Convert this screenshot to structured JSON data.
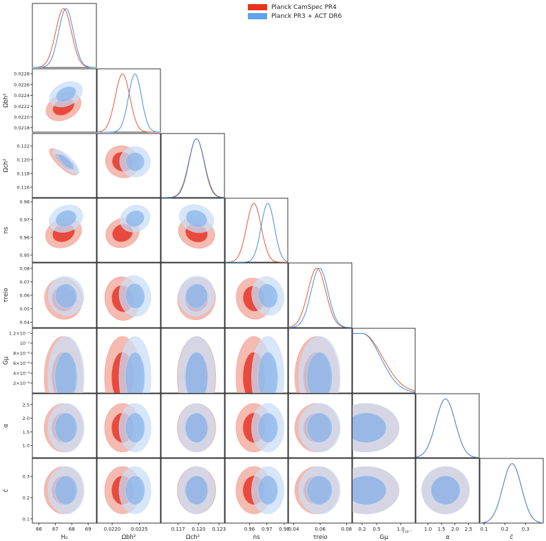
{
  "chart_data": {
    "type": "triangle-corner",
    "title": "",
    "series": [
      {
        "name": "Planck CamSpec PR4",
        "color": "#e8341f",
        "fill_outer": "#f1a396",
        "fill_inner": "#e52e22",
        "line": "#e8552f",
        "means": {
          "H0": 67.5,
          "omb": 0.02219,
          "omc": 0.1197,
          "ns": 0.9625,
          "tau": 0.0575,
          "gmu": 0.2,
          "alpha": 1.65,
          "cbar": 0.235
        }
      },
      {
        "name": "Planck PR3 + ACT DR6",
        "color": "#5ea3ec",
        "fill_outer": "#c9ddf6",
        "fill_inner": "#8cb8ec",
        "line": "#3c8ce0",
        "means": {
          "H0": 67.65,
          "omb": 0.02242,
          "omc": 0.1197,
          "ns": 0.9705,
          "tau": 0.0595,
          "gmu": 0.2,
          "alpha": 1.65,
          "cbar": 0.235
        }
      }
    ],
    "params": [
      {
        "key": "H0",
        "label": "H₀",
        "range": [
          65.6,
          69.5
        ],
        "ticks": [
          "66",
          "67",
          "68",
          "69"
        ],
        "tick_values": [
          66,
          67,
          68,
          69
        ]
      },
      {
        "key": "omb",
        "label": "Ωbh²",
        "range": [
          0.02172,
          0.02289
        ],
        "ticks": [
          "0.0220",
          "0.0225"
        ],
        "tick_values": [
          0.022,
          0.0225
        ],
        "y_ticks": [
          "0.0228",
          "0.0226",
          "0.0224",
          "0.0222",
          "0.0220",
          "0.0218"
        ],
        "y_tick_values": [
          0.0228,
          0.0226,
          0.0224,
          0.0222,
          0.022,
          0.0218
        ]
      },
      {
        "key": "omc",
        "label": "Ωch²",
        "range": [
          0.1145,
          0.1238
        ],
        "ticks": [
          "0.117",
          "0.120",
          "0.123"
        ],
        "tick_values": [
          0.117,
          0.12,
          0.123
        ],
        "y_ticks": [
          "0.122",
          "0.120",
          "0.118",
          "0.116"
        ],
        "y_tick_values": [
          0.122,
          0.12,
          0.118,
          0.116
        ]
      },
      {
        "key": "ns",
        "label": "ns",
        "range": [
          0.946,
          0.982
        ],
        "ticks": [
          "0.96",
          "0.97",
          "0.98"
        ],
        "tick_values": [
          0.96,
          0.97,
          0.98
        ],
        "y_ticks": [
          "0.98",
          "0.97",
          "0.96",
          "0.95"
        ],
        "y_tick_values": [
          0.98,
          0.97,
          0.96,
          0.95
        ]
      },
      {
        "key": "tau",
        "label": "τreio",
        "range": [
          0.036,
          0.084
        ],
        "ticks": [
          "0.04",
          "0.06",
          "0.08"
        ],
        "tick_values": [
          0.04,
          0.06,
          0.08
        ],
        "y_ticks": [
          "0.08",
          "0.07",
          "0.06",
          "0.05",
          "0.04"
        ],
        "y_tick_values": [
          0.08,
          0.07,
          0.06,
          0.05,
          0.04
        ]
      },
      {
        "key": "gmu",
        "label": "Gμ",
        "range": [
          0.0,
          1.3
        ],
        "ticks": [
          "0.2",
          "0.5",
          "1.0"
        ],
        "tick_values": [
          0.2,
          0.5,
          1.0
        ],
        "x_multiplier": "×10⁻⁷",
        "y_ticks": [
          "1.2×10⁻⁷",
          "10⁻⁷",
          "8×10⁻⁸",
          "6×10⁻⁸",
          "4×10⁻⁸",
          "2×10⁻⁸"
        ],
        "y_tick_values": [
          1.2,
          1.0,
          0.8,
          0.6,
          0.4,
          0.2
        ]
      },
      {
        "key": "alpha",
        "label": "α",
        "range": [
          0.55,
          2.9
        ],
        "ticks": [
          "1.0",
          "1.5",
          "2.0",
          "2.5"
        ],
        "tick_values": [
          1.0,
          1.5,
          2.0,
          2.5
        ],
        "y_ticks": [
          "2.5",
          "2.0",
          "1.5",
          "1.0"
        ],
        "y_tick_values": [
          2.5,
          2.0,
          1.5,
          1.0
        ]
      },
      {
        "key": "cbar",
        "label": "c̄",
        "range": [
          0.08,
          0.385
        ],
        "ticks": [
          "0.1",
          "0.2",
          "0.3"
        ],
        "tick_values": [
          0.1,
          0.2,
          0.3
        ],
        "y_ticks": [
          "0.3",
          "0.2",
          "0.1"
        ],
        "y_tick_values": [
          0.3,
          0.2,
          0.1
        ]
      }
    ]
  }
}
